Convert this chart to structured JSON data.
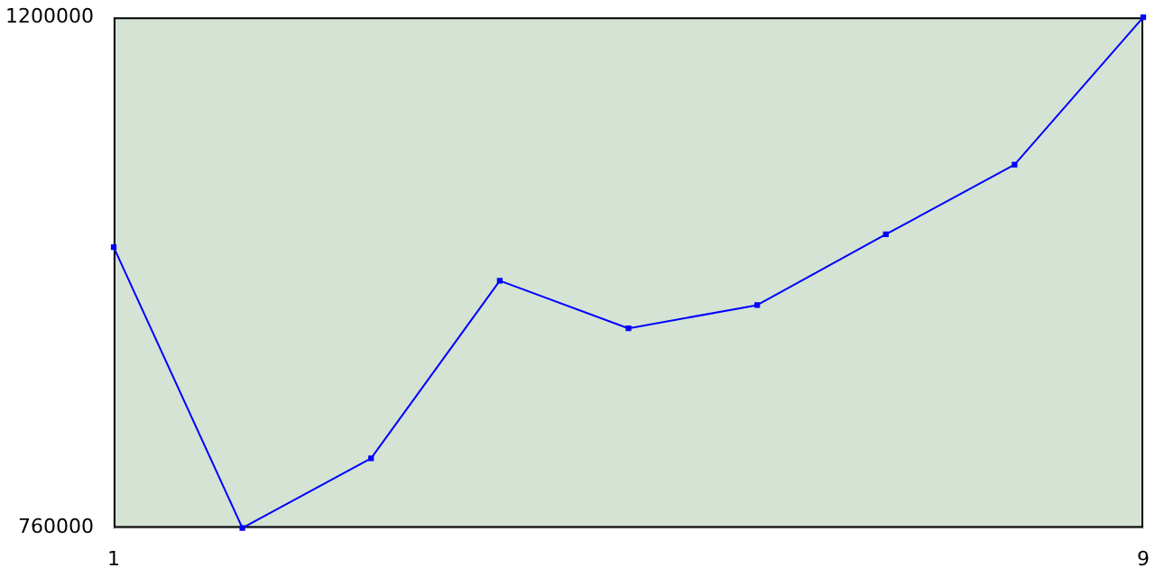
{
  "chart_data": {
    "type": "line",
    "x": [
      1,
      2,
      3,
      4,
      5,
      6,
      7,
      8,
      9
    ],
    "series": [
      {
        "color": "#0000ff",
        "values": [
          1002000,
          760000,
          820000,
          973000,
          932000,
          952000,
          1013000,
          1073000,
          1200000
        ]
      }
    ],
    "xlim": [
      1,
      9
    ],
    "xticks": [
      1,
      9
    ],
    "ylim": [
      760000,
      1200000
    ],
    "yticks": [
      760000,
      1200000
    ],
    "grid": false,
    "legend": false,
    "marker": "square",
    "line_style": "solid"
  }
}
